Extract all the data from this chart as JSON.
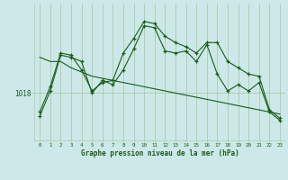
{
  "xlabel": "Graphe pression niveau de la mer (hPa)",
  "bg_color": "#cce8e8",
  "grid_color": "#aaccaa",
  "line_color": "#1a5c1a",
  "y_ref": 1018,
  "ylim": [
    1013.5,
    1026.5
  ],
  "xlim": [
    -0.5,
    23.5
  ],
  "series1": [
    1016.2,
    1018.6,
    1021.8,
    1021.6,
    1020.2,
    1018.2,
    1019.0,
    1019.2,
    1021.8,
    1023.2,
    1024.8,
    1024.6,
    1023.4,
    1022.8,
    1022.4,
    1021.8,
    1022.8,
    1022.8,
    1021.0,
    1020.4,
    1019.8,
    1019.6,
    1016.4,
    1015.6
  ],
  "series2": [
    1015.8,
    1018.2,
    1021.6,
    1021.4,
    1021.0,
    1018.0,
    1019.2,
    1018.8,
    1020.2,
    1022.2,
    1024.4,
    1024.2,
    1022.0,
    1021.8,
    1022.0,
    1021.0,
    1022.6,
    1019.8,
    1018.2,
    1018.8,
    1018.2,
    1019.0,
    1016.2,
    1015.4
  ],
  "series3": [
    1021.4,
    1021.0,
    1021.0,
    1020.4,
    1020.0,
    1019.6,
    1019.4,
    1019.2,
    1019.0,
    1018.8,
    1018.6,
    1018.4,
    1018.2,
    1018.0,
    1017.8,
    1017.6,
    1017.4,
    1017.2,
    1017.0,
    1016.8,
    1016.6,
    1016.4,
    1016.2,
    1016.0
  ]
}
